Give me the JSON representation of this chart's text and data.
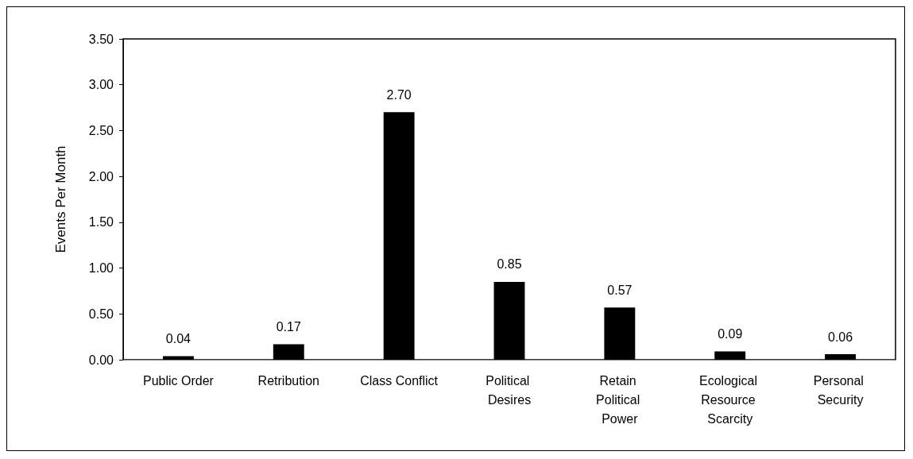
{
  "chart_data": {
    "type": "bar",
    "ylabel": "Events Per Month",
    "categories": [
      "Public Order",
      "Retribution",
      "Class Conflict",
      "Political Desires",
      "Retain Political Power",
      "Ecological Resource Scarcity",
      "Personal Security"
    ],
    "values": [
      0.04,
      0.17,
      2.7,
      0.85,
      0.57,
      0.09,
      0.06
    ],
    "value_labels": [
      "0.04",
      "0.17",
      "2.70",
      "0.85",
      "0.57",
      "0.09",
      "0.06"
    ],
    "color": "#000000",
    "ylim": [
      0,
      3.5
    ],
    "yticks": [
      {
        "value": 0,
        "label": "0.00"
      },
      {
        "value": 0.5,
        "label": "0.50"
      },
      {
        "value": 1,
        "label": "1.00"
      },
      {
        "value": 1.5,
        "label": "1.50"
      },
      {
        "value": 2,
        "label": "2.00"
      },
      {
        "value": 2.5,
        "label": "2.50"
      },
      {
        "value": 3,
        "label": "3.00"
      },
      {
        "value": 3.5,
        "label": "3.50"
      }
    ],
    "grid": false
  }
}
